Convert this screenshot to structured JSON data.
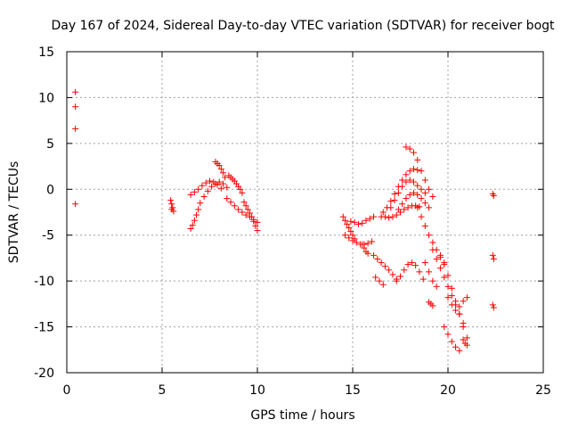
{
  "chart_data": {
    "type": "scatter",
    "title": "Day 167 of 2024, Sidereal Day-to-day VTEC variation (SDTVAR) for receiver bogt",
    "xlabel": "GPS time / hours",
    "ylabel": "SDTVAR / TECUs",
    "xlim": [
      0,
      25
    ],
    "ylim": [
      -20,
      15
    ],
    "xticks": [
      0,
      5,
      10,
      15,
      20,
      25
    ],
    "yticks": [
      -20,
      -15,
      -10,
      -5,
      0,
      5,
      10,
      15
    ],
    "grid": true,
    "marker": "+",
    "color": "#ff0000",
    "series": [
      {
        "name": "early",
        "x": [
          0.45,
          0.45,
          0.45,
          0.45
        ],
        "y": [
          10.6,
          9.0,
          6.6,
          -1.6
        ]
      },
      {
        "name": "arc1",
        "x": [
          5.45,
          5.5,
          5.55,
          5.6,
          5.5
        ],
        "y": [
          -1.2,
          -1.6,
          -2.0,
          -2.4,
          -2.2
        ]
      },
      {
        "name": "arc2",
        "x": [
          6.5,
          6.6,
          6.7,
          6.8,
          6.9,
          7.0,
          7.2,
          7.4,
          7.6,
          7.8,
          8.0,
          8.2,
          8.4
        ],
        "y": [
          -4.3,
          -3.9,
          -3.4,
          -2.8,
          -2.2,
          -1.5,
          -0.8,
          -0.2,
          0.3,
          0.6,
          0.8,
          0.6,
          0.2
        ]
      },
      {
        "name": "arc3",
        "x": [
          6.5,
          6.7,
          6.9,
          7.1,
          7.3,
          7.5,
          7.7,
          7.9,
          8.1
        ],
        "y": [
          -0.6,
          -0.3,
          0.0,
          0.4,
          0.7,
          0.9,
          0.8,
          0.5,
          0.1
        ]
      },
      {
        "name": "arc4",
        "x": [
          7.8,
          7.9,
          8.0,
          8.1,
          8.2,
          8.3
        ],
        "y": [
          3.0,
          2.8,
          2.6,
          2.2,
          1.8,
          1.3
        ]
      },
      {
        "name": "arc5",
        "x": [
          8.5,
          8.6,
          8.7,
          8.8,
          8.9,
          9.0,
          9.1,
          9.2
        ],
        "y": [
          1.5,
          1.3,
          1.1,
          0.9,
          0.6,
          0.3,
          0.0,
          -0.4
        ]
      },
      {
        "name": "arc6",
        "x": [
          8.4,
          8.6,
          8.8,
          9.0,
          9.2,
          9.4,
          9.6,
          9.8,
          10.0
        ],
        "y": [
          -1.0,
          -1.4,
          -1.8,
          -2.2,
          -2.5,
          -2.8,
          -3.0,
          -3.3,
          -3.6
        ]
      },
      {
        "name": "arc7",
        "x": [
          9.3,
          9.4,
          9.5,
          9.6,
          9.7,
          9.8,
          9.9,
          10.0
        ],
        "y": [
          -1.4,
          -1.8,
          -2.2,
          -2.6,
          -3.0,
          -3.5,
          -4.0,
          -4.5
        ]
      },
      {
        "name": "arc8",
        "x": [
          14.5,
          14.6,
          14.7,
          14.8,
          14.9,
          15.0,
          15.1
        ],
        "y": [
          -3.0,
          -3.4,
          -3.8,
          -4.2,
          -4.6,
          -5.0,
          -5.4
        ]
      },
      {
        "name": "arc9",
        "x": [
          14.6,
          14.8,
          15.0,
          15.2,
          15.4,
          15.6,
          15.8,
          16.0
        ],
        "y": [
          -5.0,
          -5.3,
          -5.6,
          -5.8,
          -6.0,
          -6.0,
          -5.9,
          -5.7
        ]
      },
      {
        "name": "arc10",
        "x": [
          14.9,
          15.1,
          15.3,
          15.5,
          15.7,
          15.9,
          16.1
        ],
        "y": [
          -3.5,
          -3.6,
          -3.8,
          -3.7,
          -3.4,
          -3.2,
          -3.0
        ]
      },
      {
        "name": "arc11",
        "x": [
          15.5,
          15.6,
          15.7,
          15.8
        ],
        "y": [
          -6.0,
          -6.4,
          -6.8,
          -7.0
        ]
      },
      {
        "name": "arc12",
        "x": [
          16.6,
          16.8,
          17.0,
          17.2,
          17.4,
          17.6,
          17.8,
          18.0,
          18.2,
          18.4
        ],
        "y": [
          -2.5,
          -2.0,
          -1.3,
          -0.5,
          0.3,
          1.0,
          1.6,
          2.0,
          2.2,
          2.1
        ]
      },
      {
        "name": "arc13",
        "x": [
          17.0,
          17.2,
          17.4,
          17.6,
          17.8,
          18.0,
          18.2,
          18.4,
          18.6,
          18.8
        ],
        "y": [
          -2.0,
          -1.2,
          -0.4,
          0.3,
          0.8,
          1.0,
          0.8,
          0.4,
          0.0,
          -0.4
        ]
      },
      {
        "name": "arc14",
        "x": [
          17.4,
          17.6,
          17.8,
          18.0,
          18.2,
          18.4,
          18.6,
          18.8,
          19.0
        ],
        "y": [
          -2.2,
          -1.6,
          -1.0,
          -0.6,
          -0.4,
          -0.6,
          -1.0,
          -1.5,
          -2.0
        ]
      },
      {
        "name": "arc15",
        "x": [
          17.8,
          18.0,
          18.2,
          18.4,
          18.6,
          18.8,
          19.0,
          19.2
        ],
        "y": [
          4.6,
          4.4,
          4.0,
          3.2,
          2.0,
          1.0,
          0.0,
          -0.8
        ]
      },
      {
        "name": "arc16",
        "x": [
          16.5,
          16.7,
          16.9,
          17.1,
          17.3,
          17.5,
          17.7,
          17.9,
          18.1,
          18.3,
          18.5
        ],
        "y": [
          -3.0,
          -3.0,
          -3.1,
          -3.0,
          -2.8,
          -2.5,
          -2.2,
          -2.0,
          -1.8,
          -1.8,
          -1.9
        ]
      },
      {
        "name": "arc17",
        "x": [
          18.4,
          18.6,
          18.8,
          19.0,
          19.2,
          19.4,
          19.6,
          19.8
        ],
        "y": [
          -2.0,
          -3.0,
          -4.0,
          -5.0,
          -5.8,
          -6.6,
          -7.4,
          -8.0
        ]
      },
      {
        "name": "arc18",
        "x": [
          16.1,
          16.3,
          16.5,
          16.7,
          16.9,
          17.1,
          17.3
        ],
        "y": [
          -7.2,
          -7.6,
          -8.0,
          -8.4,
          -8.8,
          -9.3,
          -9.8
        ]
      },
      {
        "name": "arc19",
        "x": [
          16.2,
          16.4,
          16.6
        ],
        "y": [
          -9.6,
          -10.0,
          -10.4
        ]
      },
      {
        "name": "arc20",
        "x": [
          17.3,
          17.5,
          17.7,
          17.9,
          18.1,
          18.3,
          18.5,
          18.7
        ],
        "y": [
          -10.0,
          -9.5,
          -8.8,
          -8.2,
          -8.0,
          -8.3,
          -9.0,
          -9.8
        ]
      },
      {
        "name": "arc21",
        "x": [
          18.8,
          19.0,
          19.2,
          19.4
        ],
        "y": [
          -8.0,
          -9.0,
          -10.0,
          -10.6
        ]
      },
      {
        "name": "arc22",
        "x": [
          19.2,
          19.4,
          19.6,
          19.8,
          20.0,
          20.2,
          20.4,
          20.6,
          20.8
        ],
        "y": [
          -6.6,
          -7.6,
          -8.6,
          -9.6,
          -10.6,
          -11.6,
          -12.6,
          -13.6,
          -14.6
        ]
      },
      {
        "name": "arc23",
        "x": [
          19.6,
          19.8,
          20.0,
          20.2,
          20.4,
          20.6,
          20.8,
          21.0
        ],
        "y": [
          -7.2,
          -8.2,
          -9.4,
          -10.8,
          -12.2,
          -13.6,
          -15.0,
          -16.2
        ]
      },
      {
        "name": "arc24",
        "x": [
          19.0,
          19.1,
          19.2
        ],
        "y": [
          -12.3,
          -12.5,
          -12.7
        ]
      },
      {
        "name": "arc25",
        "x": [
          19.8,
          20.0,
          20.2,
          20.4,
          20.6
        ],
        "y": [
          -15.0,
          -15.8,
          -16.6,
          -17.2,
          -17.6
        ]
      },
      {
        "name": "arc26",
        "x": [
          20.0,
          20.2,
          20.4,
          20.6,
          20.8,
          21.0
        ],
        "y": [
          -11.8,
          -12.6,
          -13.2,
          -12.8,
          -12.2,
          -11.8
        ]
      },
      {
        "name": "arc27",
        "x": [
          20.8,
          20.9,
          21.0
        ],
        "y": [
          -16.4,
          -16.8,
          -17.0
        ]
      },
      {
        "name": "late",
        "x": [
          22.35,
          22.4,
          22.35,
          22.4,
          22.35,
          22.4
        ],
        "y": [
          -0.5,
          -0.7,
          -7.2,
          -7.6,
          -12.6,
          -12.9
        ]
      }
    ]
  }
}
